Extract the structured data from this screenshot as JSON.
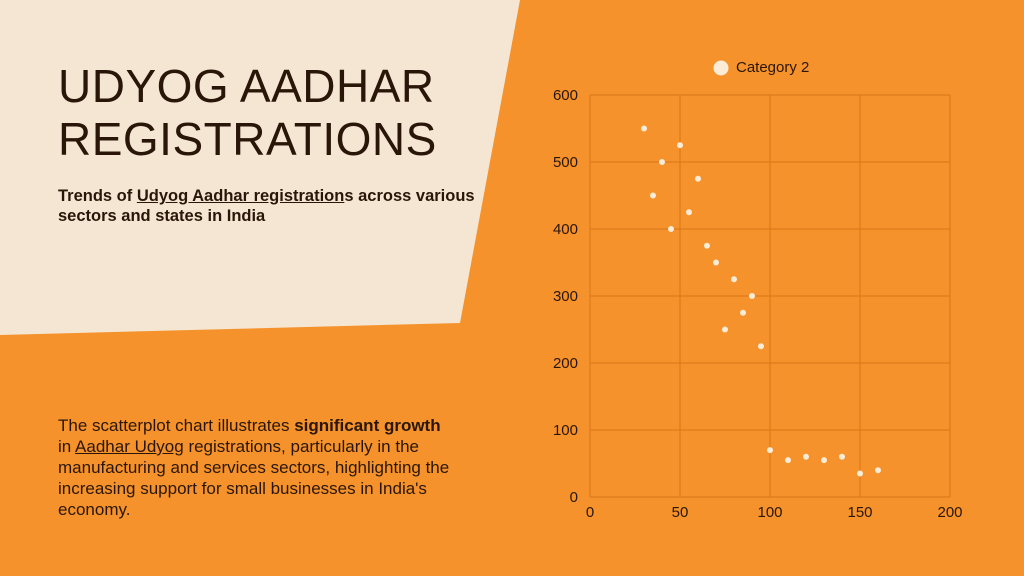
{
  "colors": {
    "background": "#F5922B",
    "panel": "#F5E6D3",
    "text": "#2a1608",
    "point": "#FCEBD6",
    "grid": "#D9761A"
  },
  "header": {
    "title": "UDYOG AADHAR REGISTRATIONS",
    "subtitle_before": "Trends of ",
    "subtitle_link": "Udyog Aadhar registration",
    "subtitle_after": "s across various sectors and states in India"
  },
  "description": {
    "part1": "The scatterplot chart illustrates ",
    "bold": "significant growth",
    "part2": " in ",
    "link": "Aadhar Udyog",
    "part3": " registrations, particularly in the manufacturing and services sectors, highlighting the increasing support for small businesses in India's economy."
  },
  "chart_data": {
    "type": "scatter",
    "title": "",
    "xlabel": "",
    "ylabel": "",
    "xlim": [
      0,
      200
    ],
    "ylim": [
      0,
      600
    ],
    "x_ticks": [
      0,
      50,
      100,
      150,
      200
    ],
    "y_ticks": [
      0,
      100,
      200,
      300,
      400,
      500,
      600
    ],
    "grid": true,
    "legend": "top",
    "series": [
      {
        "name": "Category 2",
        "color": "#FCEBD6",
        "x": [
          30,
          35,
          40,
          45,
          50,
          55,
          60,
          65,
          70,
          75,
          80,
          85,
          90,
          95,
          100,
          110,
          120,
          130,
          140,
          150,
          160
        ],
        "y": [
          550,
          450,
          500,
          400,
          525,
          425,
          475,
          375,
          350,
          250,
          325,
          275,
          300,
          225,
          70,
          55,
          60,
          55,
          60,
          35,
          40
        ]
      }
    ]
  }
}
